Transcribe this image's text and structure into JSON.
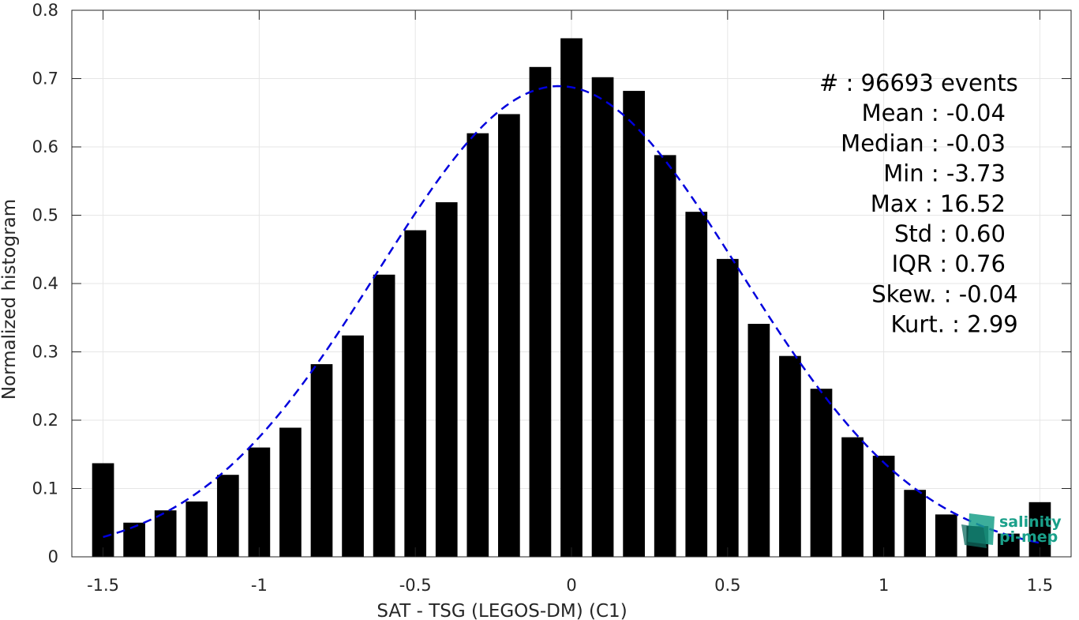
{
  "chart_data": {
    "type": "bar",
    "xlabel": "SAT - TSG (LEGOS-DM) (C1)",
    "ylabel": "Normalized histogram",
    "xlim": [
      -1.6,
      1.6
    ],
    "ylim": [
      0,
      0.8
    ],
    "xticks": [
      -1.5,
      -1,
      -0.5,
      0,
      0.5,
      1,
      1.5
    ],
    "xtick_labels": [
      "-1.5",
      "-1",
      "-0.5",
      "0",
      "0.5",
      "1",
      "1.5"
    ],
    "yticks": [
      0,
      0.1,
      0.2,
      0.3,
      0.4,
      0.5,
      0.6,
      0.7,
      0.8
    ],
    "ytick_labels": [
      "0",
      "0.1",
      "0.2",
      "0.3",
      "0.4",
      "0.5",
      "0.6",
      "0.7",
      "0.8"
    ],
    "grid": true,
    "bin_centers": [
      -1.5,
      -1.4,
      -1.3,
      -1.2,
      -1.1,
      -1.0,
      -0.9,
      -0.8,
      -0.7,
      -0.6,
      -0.5,
      -0.4,
      -0.3,
      -0.2,
      -0.1,
      0.0,
      0.1,
      0.2,
      0.3,
      0.4,
      0.5,
      0.6,
      0.7,
      0.8,
      0.9,
      1.0,
      1.1,
      1.2,
      1.3,
      1.4,
      1.5
    ],
    "values": [
      0.137,
      0.05,
      0.068,
      0.081,
      0.12,
      0.16,
      0.189,
      0.282,
      0.324,
      0.413,
      0.478,
      0.519,
      0.62,
      0.648,
      0.717,
      0.759,
      0.702,
      0.682,
      0.588,
      0.505,
      0.436,
      0.341,
      0.294,
      0.246,
      0.175,
      0.148,
      0.098,
      0.062,
      0.045,
      0.034,
      0.08
    ],
    "bar_width": 0.07,
    "bar_color": "#000000",
    "fit": {
      "type": "gaussian",
      "mean": -0.04,
      "std": 0.58,
      "peak": 0.689,
      "x_range": [
        -1.5,
        1.5
      ],
      "color": "#0000dd",
      "style": "dashed"
    },
    "stats": [
      {
        "label": "#  : 96693 events",
        "anchor": "end",
        "x": 1.43
      },
      {
        "label": "Mean : -0.04",
        "anchor": "end",
        "x": 1.39
      },
      {
        "label": "Median : -0.03",
        "anchor": "end",
        "x": 1.39
      },
      {
        "label": "Min : -3.73",
        "anchor": "end",
        "x": 1.39
      },
      {
        "label": "Max : 16.52",
        "anchor": "end",
        "x": 1.39
      },
      {
        "label": "Std : 0.60",
        "anchor": "end",
        "x": 1.39
      },
      {
        "label": "IQR : 0.76",
        "anchor": "end",
        "x": 1.39
      },
      {
        "label": "Skew. : -0.04",
        "anchor": "end",
        "x": 1.43
      },
      {
        "label": "Kurt. : 2.99",
        "anchor": "end",
        "x": 1.43
      }
    ]
  },
  "logo": {
    "line1": "salinity",
    "line2": "pi-mep",
    "color": "#1aa08a"
  }
}
